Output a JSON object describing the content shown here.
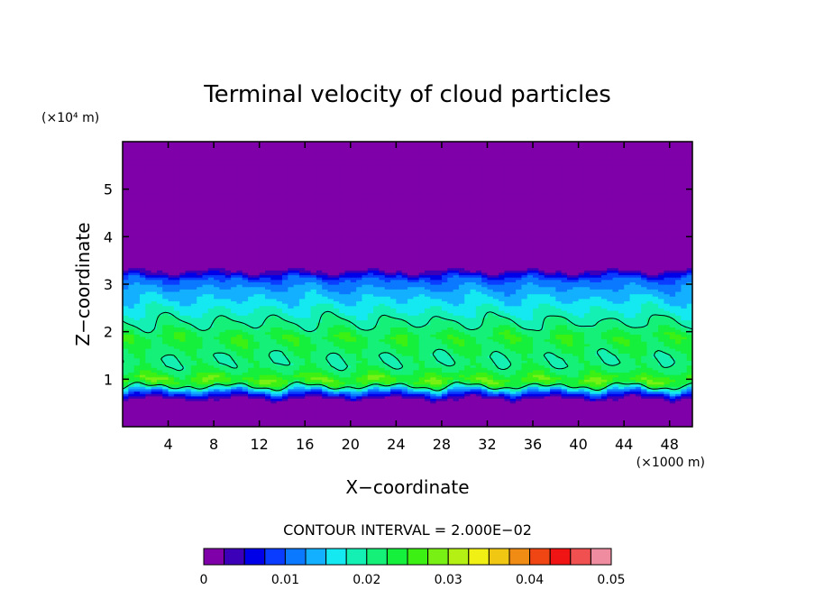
{
  "chart_data": {
    "type": "heatmap",
    "title": "Terminal velocity of cloud particles",
    "xlabel": "X−coordinate",
    "ylabel": "Z−coordinate",
    "x_unit": "(×1000 m)",
    "y_unit": "(×10⁴ m)",
    "xlim": [
      0,
      50
    ],
    "ylim": [
      0,
      6
    ],
    "x_ticks": [
      4,
      8,
      12,
      16,
      20,
      24,
      28,
      32,
      36,
      40,
      44,
      48
    ],
    "y_ticks": [
      1,
      2,
      3,
      4,
      5
    ],
    "contour_interval_label": "CONTOUR INTERVAL = 2.000E−02",
    "contour_interval": 0.02,
    "colorbar": {
      "levels_min": 0,
      "levels_max": 0.05,
      "level_step": 0.0025,
      "tick_labels": [
        "0",
        "0.01",
        "0.02",
        "0.03",
        "0.04",
        "0.05"
      ],
      "tick_values": [
        0,
        0.01,
        0.02,
        0.03,
        0.04,
        0.05
      ],
      "colors": [
        "#7f00a8",
        "#3c00b8",
        "#0000e8",
        "#0a3cff",
        "#0a78ff",
        "#12b0ff",
        "#14e8f0",
        "#14f0b4",
        "#14f078",
        "#14f03c",
        "#3cf014",
        "#78f014",
        "#b4f014",
        "#f0f014",
        "#f0c814",
        "#f08c14",
        "#f04614",
        "#f01414",
        "#f05050",
        "#f08ca0"
      ]
    },
    "profile": {
      "z": [
        0,
        0.55,
        0.7,
        0.8,
        0.9,
        1.0,
        1.1,
        1.3,
        1.5,
        1.7,
        1.9,
        2.1,
        2.3,
        2.5,
        2.7,
        2.9,
        3.1,
        3.2,
        3.3,
        3.4,
        6.0
      ],
      "value": [
        0,
        0,
        0.008,
        0.016,
        0.024,
        0.027,
        0.024,
        0.021,
        0.021,
        0.023,
        0.024,
        0.021,
        0.019,
        0.017,
        0.015,
        0.013,
        0.01,
        0.006,
        0.002,
        0,
        0
      ]
    }
  }
}
